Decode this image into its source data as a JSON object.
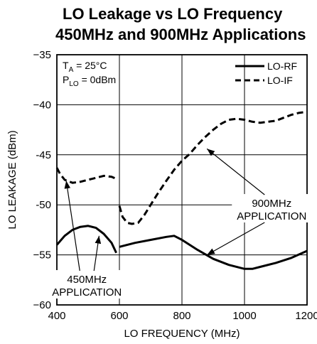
{
  "chart_data": {
    "type": "line",
    "title": "LO Leakage vs LO Frequency",
    "subtitle": "450MHz and 900MHz Applications",
    "xlabel": "LO FREQUENCY (MHz)",
    "ylabel": "LO LEAKAGE (dBm)",
    "xlim": [
      400,
      1200
    ],
    "ylim": [
      -60,
      -35
    ],
    "x_ticks": [
      400,
      600,
      800,
      1000,
      1200
    ],
    "y_ticks": [
      -35,
      -40,
      -45,
      -50,
      -55,
      -60
    ],
    "x_tick_labels": [
      "400",
      "600",
      "800",
      "1000",
      "1200"
    ],
    "y_tick_labels": [
      "−35",
      "−40",
      "-45",
      "-50",
      "−55",
      "−60"
    ],
    "grid": true,
    "legend_position": "top-right",
    "conditions": {
      "ta_main": "T",
      "ta_sub": "A",
      "ta_rest": " = 25°C",
      "plo_main": "P",
      "plo_sub": "LO",
      "plo_rest": " = 0dBm"
    },
    "series": [
      {
        "name": "LO-RF",
        "style": "solid",
        "color": "#000000",
        "segments": [
          {
            "x": [
              400,
              425,
              450,
              475,
              500,
              525,
              550,
              575,
              590
            ],
            "y": [
              -54.0,
              -53.1,
              -52.5,
              -52.2,
              -52.1,
              -52.3,
              -52.9,
              -53.8,
              -54.8
            ]
          },
          {
            "x": [
              600,
              650,
              700,
              750,
              775,
              800,
              850,
              900,
              950,
              1000,
              1025,
              1050,
              1100,
              1150,
              1200
            ],
            "y": [
              -54.2,
              -53.8,
              -53.5,
              -53.2,
              -53.1,
              -53.5,
              -54.5,
              -55.4,
              -56.0,
              -56.4,
              -56.4,
              -56.2,
              -55.8,
              -55.3,
              -54.6
            ]
          }
        ]
      },
      {
        "name": "LO-IF",
        "style": "dashed",
        "color": "#000000",
        "segments": [
          {
            "x": [
              400,
              410,
              425,
              450,
              475,
              500,
              525,
              550,
              575,
              590
            ],
            "y": [
              -46.3,
              -46.9,
              -47.5,
              -47.8,
              -47.7,
              -47.5,
              -47.3,
              -47.1,
              -47.2,
              -47.4
            ]
          },
          {
            "x": [
              600,
              610,
              625,
              640,
              660,
              680,
              700,
              720,
              750,
              775,
              800,
              825,
              850,
              875,
              900,
              925,
              950,
              975,
              1000,
              1025,
              1050,
              1075,
              1100,
              1125,
              1150,
              1175,
              1200
            ],
            "y": [
              -50.1,
              -51.2,
              -51.8,
              -51.9,
              -51.8,
              -51.0,
              -50.0,
              -49.0,
              -47.6,
              -46.5,
              -45.6,
              -44.9,
              -44.0,
              -43.2,
              -42.5,
              -41.9,
              -41.5,
              -41.4,
              -41.5,
              -41.7,
              -41.8,
              -41.7,
              -41.6,
              -41.3,
              -41.0,
              -40.8,
              -40.7
            ]
          }
        ]
      }
    ],
    "annotations": [
      {
        "text": [
          "900MHz",
          "APPLICATION"
        ],
        "text_at": [
          1087,
          -50.2
        ],
        "arrows_to": [
          [
            880,
            -44.4
          ],
          [
            880,
            -55.0
          ]
        ]
      },
      {
        "text": [
          "450MHz",
          "APPLICATION"
        ],
        "text_at": [
          496,
          -57.8
        ],
        "arrows_to": [
          [
            430,
            -47.6
          ],
          [
            535,
            -53.1
          ]
        ]
      }
    ]
  }
}
